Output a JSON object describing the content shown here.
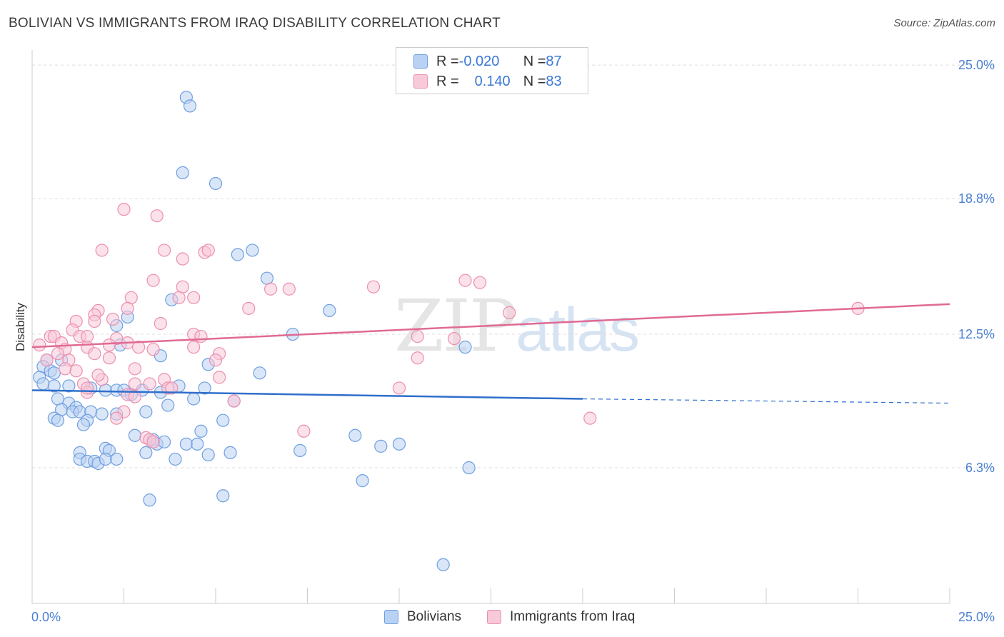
{
  "header": {
    "title": "BOLIVIAN VS IMMIGRANTS FROM IRAQ DISABILITY CORRELATION CHART",
    "source": "Source: ZipAtlas.com"
  },
  "watermark": {
    "zip": "ZIP",
    "atlas": "atlas"
  },
  "legend": {
    "rows": [
      {
        "r_label": "R = ",
        "r_value": "-0.020",
        "n_label": "N = ",
        "n_value": "87",
        "color": "#8fb6ec"
      },
      {
        "r_label": "R = ",
        "r_value": " 0.140",
        "n_label": "N = ",
        "n_value": "83",
        "color": "#f3a6c0"
      }
    ]
  },
  "bottom_legend": {
    "items": [
      {
        "label": "Bolivians",
        "color": "#8fb6ec"
      },
      {
        "label": "Immigrants from Iraq",
        "color": "#f3a6c0"
      }
    ]
  },
  "colors": {
    "blue_fill": "#b9d1f3",
    "blue_stroke": "#6f9fe0",
    "blue_line": "#2f6fcb",
    "pink_fill": "#f8c9d8",
    "pink_stroke": "#ec8fae",
    "pink_line": "#e06a93",
    "grid": "#dddddd",
    "tick_text": "#4a7fd4"
  },
  "chart_data": {
    "type": "scatter",
    "title": "BOLIVIAN VS IMMIGRANTS FROM IRAQ DISABILITY CORRELATION CHART",
    "xlabel": "",
    "ylabel": "Disability",
    "xlim": [
      0,
      25
    ],
    "ylim": [
      0,
      25.7
    ],
    "y_ticks": [
      {
        "value": 6.3,
        "label": "6.3%"
      },
      {
        "value": 12.5,
        "label": "12.5%"
      },
      {
        "value": 18.8,
        "label": "18.8%"
      },
      {
        "value": 25.0,
        "label": "25.0%"
      }
    ],
    "x_tick_labels": [
      {
        "value": 0,
        "label": "0.0%"
      },
      {
        "value": 25,
        "label": "25.0%"
      }
    ],
    "x_minor_ticks": [
      2.5,
      5,
      7.5,
      10,
      12.5,
      15,
      17.5,
      20,
      22.5,
      25
    ],
    "grid": true,
    "legend_position": "top-center",
    "series": [
      {
        "name": "Bolivians",
        "r": -0.02,
        "n": 87,
        "trend": {
          "x0": 0,
          "y0": 9.9,
          "x1": 15,
          "y1": 9.5,
          "dash_to_x": 25,
          "dash_to_y": 9.3
        },
        "points": [
          [
            4.2,
            23.5
          ],
          [
            4.3,
            23.1
          ],
          [
            4.1,
            20.0
          ],
          [
            5.0,
            19.5
          ],
          [
            5.6,
            16.2
          ],
          [
            6.0,
            16.4
          ],
          [
            6.4,
            15.1
          ],
          [
            8.1,
            13.6
          ],
          [
            3.8,
            14.1
          ],
          [
            2.6,
            13.3
          ],
          [
            2.3,
            12.9
          ],
          [
            7.1,
            12.5
          ],
          [
            11.8,
            11.9
          ],
          [
            2.4,
            12.0
          ],
          [
            3.5,
            11.5
          ],
          [
            4.8,
            11.1
          ],
          [
            6.2,
            10.7
          ],
          [
            0.4,
            11.3
          ],
          [
            0.8,
            11.3
          ],
          [
            0.3,
            11.0
          ],
          [
            0.5,
            10.8
          ],
          [
            0.6,
            10.7
          ],
          [
            0.2,
            10.5
          ],
          [
            0.3,
            10.2
          ],
          [
            0.6,
            10.1
          ],
          [
            1.0,
            10.1
          ],
          [
            1.6,
            10.0
          ],
          [
            2.0,
            9.9
          ],
          [
            2.3,
            9.9
          ],
          [
            2.5,
            9.9
          ],
          [
            2.7,
            9.7
          ],
          [
            3.0,
            9.9
          ],
          [
            3.5,
            9.8
          ],
          [
            4.0,
            10.1
          ],
          [
            4.7,
            10.0
          ],
          [
            0.7,
            9.5
          ],
          [
            1.0,
            9.3
          ],
          [
            1.2,
            9.1
          ],
          [
            0.8,
            9.0
          ],
          [
            1.1,
            8.9
          ],
          [
            1.3,
            8.9
          ],
          [
            1.6,
            8.9
          ],
          [
            1.9,
            8.8
          ],
          [
            2.3,
            8.8
          ],
          [
            3.1,
            8.9
          ],
          [
            3.7,
            9.2
          ],
          [
            4.4,
            9.5
          ],
          [
            0.6,
            8.6
          ],
          [
            0.7,
            8.5
          ],
          [
            1.5,
            8.5
          ],
          [
            1.4,
            8.3
          ],
          [
            5.2,
            8.5
          ],
          [
            5.5,
            9.4
          ],
          [
            4.6,
            8.0
          ],
          [
            2.8,
            7.8
          ],
          [
            3.3,
            7.6
          ],
          [
            3.4,
            7.4
          ],
          [
            3.6,
            7.5
          ],
          [
            4.2,
            7.4
          ],
          [
            4.5,
            7.4
          ],
          [
            8.8,
            7.8
          ],
          [
            9.5,
            7.3
          ],
          [
            10.0,
            7.4
          ],
          [
            7.3,
            7.1
          ],
          [
            5.4,
            7.0
          ],
          [
            4.8,
            6.9
          ],
          [
            3.1,
            7.0
          ],
          [
            2.0,
            7.2
          ],
          [
            2.1,
            7.1
          ],
          [
            1.3,
            7.0
          ],
          [
            1.3,
            6.7
          ],
          [
            1.5,
            6.6
          ],
          [
            1.7,
            6.6
          ],
          [
            1.8,
            6.5
          ],
          [
            2.0,
            6.7
          ],
          [
            2.3,
            6.7
          ],
          [
            3.9,
            6.7
          ],
          [
            11.9,
            6.3
          ],
          [
            9.0,
            5.7
          ],
          [
            3.2,
            4.8
          ],
          [
            5.2,
            5.0
          ],
          [
            11.2,
            1.8
          ]
        ]
      },
      {
        "name": "Immigrants from Iraq",
        "r": 0.14,
        "n": 83,
        "trend": {
          "x0": 0,
          "y0": 11.9,
          "x1": 25,
          "y1": 13.9
        },
        "points": [
          [
            2.5,
            18.3
          ],
          [
            3.4,
            18.0
          ],
          [
            1.9,
            16.4
          ],
          [
            3.6,
            16.4
          ],
          [
            4.7,
            16.3
          ],
          [
            4.8,
            16.4
          ],
          [
            4.1,
            16.0
          ],
          [
            3.3,
            15.0
          ],
          [
            11.8,
            15.0
          ],
          [
            12.2,
            14.9
          ],
          [
            4.1,
            14.7
          ],
          [
            9.3,
            14.7
          ],
          [
            6.5,
            14.6
          ],
          [
            7.0,
            14.6
          ],
          [
            2.7,
            14.2
          ],
          [
            4.0,
            14.2
          ],
          [
            4.4,
            14.2
          ],
          [
            1.8,
            13.6
          ],
          [
            1.7,
            13.4
          ],
          [
            2.6,
            13.7
          ],
          [
            5.9,
            13.7
          ],
          [
            13.0,
            13.5
          ],
          [
            22.5,
            13.7
          ],
          [
            1.2,
            13.1
          ],
          [
            1.7,
            13.1
          ],
          [
            2.2,
            13.2
          ],
          [
            3.5,
            13.0
          ],
          [
            1.1,
            12.7
          ],
          [
            0.5,
            12.4
          ],
          [
            0.6,
            12.4
          ],
          [
            1.3,
            12.4
          ],
          [
            1.5,
            12.4
          ],
          [
            2.3,
            12.3
          ],
          [
            2.6,
            12.1
          ],
          [
            4.4,
            12.5
          ],
          [
            4.6,
            12.4
          ],
          [
            10.5,
            12.4
          ],
          [
            11.5,
            12.3
          ],
          [
            0.8,
            12.1
          ],
          [
            0.9,
            11.8
          ],
          [
            1.5,
            11.9
          ],
          [
            2.1,
            12.0
          ],
          [
            2.9,
            11.9
          ],
          [
            3.3,
            11.8
          ],
          [
            4.4,
            11.9
          ],
          [
            0.2,
            12.0
          ],
          [
            0.7,
            11.6
          ],
          [
            1.0,
            11.3
          ],
          [
            1.7,
            11.6
          ],
          [
            2.1,
            11.4
          ],
          [
            0.4,
            11.3
          ],
          [
            0.9,
            10.9
          ],
          [
            1.2,
            10.8
          ],
          [
            2.8,
            10.9
          ],
          [
            5.1,
            11.6
          ],
          [
            5.0,
            11.3
          ],
          [
            10.5,
            11.4
          ],
          [
            1.4,
            10.2
          ],
          [
            1.9,
            10.4
          ],
          [
            1.8,
            10.6
          ],
          [
            2.8,
            10.2
          ],
          [
            3.2,
            10.2
          ],
          [
            3.6,
            10.4
          ],
          [
            3.7,
            10.0
          ],
          [
            3.8,
            10.0
          ],
          [
            5.1,
            10.5
          ],
          [
            10.0,
            10.0
          ],
          [
            1.5,
            9.8
          ],
          [
            1.5,
            10.0
          ],
          [
            2.6,
            9.7
          ],
          [
            2.8,
            9.6
          ],
          [
            5.5,
            9.4
          ],
          [
            2.5,
            8.9
          ],
          [
            2.3,
            8.6
          ],
          [
            15.2,
            8.6
          ],
          [
            7.4,
            8.0
          ],
          [
            3.1,
            7.7
          ],
          [
            3.2,
            7.6
          ],
          [
            3.3,
            7.5
          ]
        ]
      }
    ]
  }
}
